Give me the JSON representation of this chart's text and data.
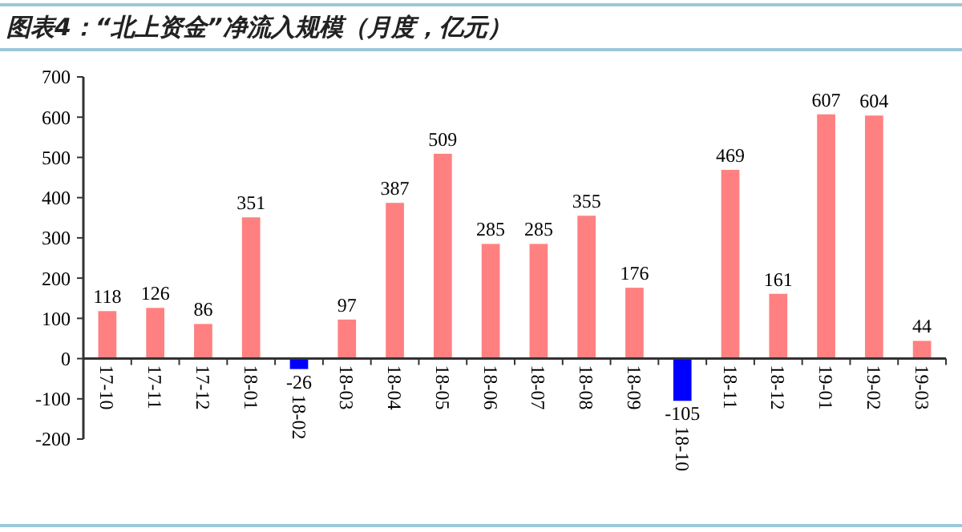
{
  "chart_data": {
    "type": "bar",
    "title": "图表4：“北上资金”净流入规模（月度，亿元）",
    "categories": [
      "17-10",
      "17-11",
      "17-12",
      "18-01",
      "18-02",
      "18-03",
      "18-04",
      "18-05",
      "18-06",
      "18-07",
      "18-08",
      "18-09",
      "18-10",
      "18-11",
      "18-12",
      "19-01",
      "19-02",
      "19-03"
    ],
    "values": [
      118,
      126,
      86,
      351,
      -26,
      97,
      387,
      509,
      285,
      285,
      355,
      176,
      -105,
      469,
      161,
      607,
      604,
      44
    ],
    "colors": [
      "#ff8080",
      "#ff8080",
      "#ff8080",
      "#ff8080",
      "#0000ff",
      "#ff8080",
      "#ff8080",
      "#ff8080",
      "#ff8080",
      "#ff8080",
      "#ff8080",
      "#ff8080",
      "#0000ff",
      "#ff8080",
      "#ff8080",
      "#ff8080",
      "#ff8080",
      "#ff8080"
    ],
    "ylim": [
      -200,
      700
    ],
    "yticks": [
      -200,
      -100,
      0,
      100,
      200,
      300,
      400,
      500,
      600,
      700
    ],
    "grid": false,
    "data_labels": true
  }
}
